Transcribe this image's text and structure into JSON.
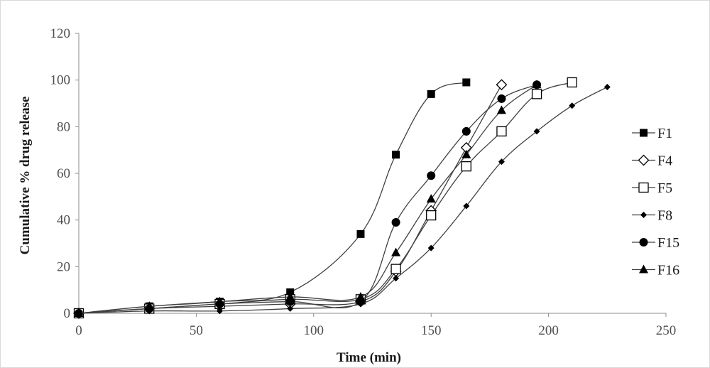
{
  "chart_data": {
    "type": "line",
    "xlabel": "Time (min)",
    "ylabel": "Cumulative % drug release",
    "xlim": [
      0,
      250
    ],
    "ylim": [
      0,
      120
    ],
    "xticks": [
      0,
      50,
      100,
      150,
      200,
      250
    ],
    "yticks": [
      0,
      20,
      40,
      60,
      80,
      100,
      120
    ],
    "grid": false,
    "legend_position": "right",
    "series": [
      {
        "name": "F1",
        "marker": "square-filled",
        "x": [
          0,
          30,
          60,
          90,
          120,
          135,
          150,
          165
        ],
        "y": [
          0,
          3,
          5,
          9,
          34,
          68,
          94,
          99
        ]
      },
      {
        "name": "F4",
        "marker": "diamond-open",
        "x": [
          0,
          30,
          60,
          90,
          120,
          135,
          150,
          165,
          180
        ],
        "y": [
          0,
          2,
          3,
          4,
          5,
          18,
          44,
          71,
          98
        ]
      },
      {
        "name": "F5",
        "marker": "square-open",
        "x": [
          0,
          30,
          60,
          90,
          120,
          135,
          150,
          165,
          180,
          195,
          210
        ],
        "y": [
          0,
          2,
          4,
          6,
          6,
          19,
          42,
          63,
          78,
          94,
          99
        ]
      },
      {
        "name": "F8",
        "marker": "diamond-small",
        "x": [
          0,
          30,
          60,
          90,
          120,
          135,
          150,
          165,
          180,
          195,
          210,
          225
        ],
        "y": [
          0,
          1,
          1,
          2,
          4,
          15,
          28,
          46,
          65,
          78,
          89,
          97
        ]
      },
      {
        "name": "F15",
        "marker": "circle-filled",
        "x": [
          0,
          30,
          60,
          90,
          120,
          135,
          150,
          165,
          180,
          195
        ],
        "y": [
          0,
          2,
          4,
          5,
          5,
          39,
          59,
          78,
          92,
          98
        ]
      },
      {
        "name": "F16",
        "marker": "triangle-filled",
        "x": [
          0,
          30,
          60,
          90,
          120,
          135,
          150,
          165,
          180,
          195
        ],
        "y": [
          0,
          3,
          5,
          7,
          7,
          26,
          49,
          68,
          87,
          98
        ]
      }
    ]
  }
}
